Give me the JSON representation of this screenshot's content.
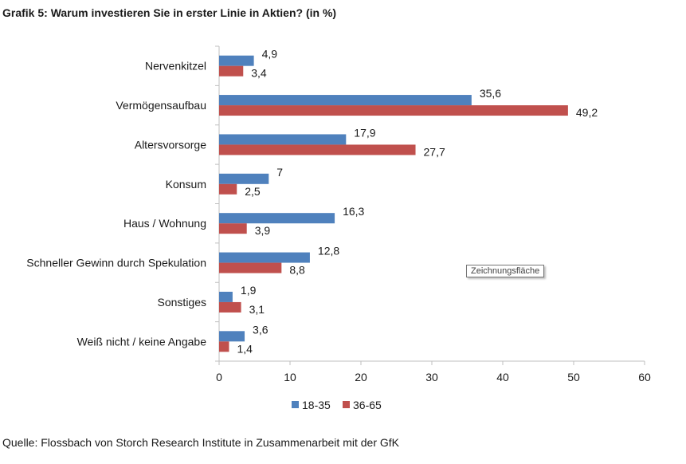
{
  "title": "Grafik 5: Warum investieren Sie in erster Linie in Aktien? (in %)",
  "source": "Quelle: Flossbach von Storch Research Institute in Zusammenarbeit mit der GfK",
  "tooltip": "Zeichnungsfläche",
  "colors": {
    "series1": "#4f81bd",
    "series2": "#c0504d",
    "axis": "#bfbfbf",
    "text": "#1a1a1a"
  },
  "chart_data": {
    "type": "bar",
    "orientation": "horizontal",
    "categories": [
      "Nervenkitzel",
      "Vermögensaufbau",
      "Altersvorsorge",
      "Konsum",
      "Haus / Wohnung",
      "Schneller Gewinn durch Spekulation",
      "Sonstiges",
      "Weiß nicht / keine Angabe"
    ],
    "series": [
      {
        "name": "18-35",
        "values": [
          4.9,
          35.6,
          17.9,
          7,
          16.3,
          12.8,
          1.9,
          3.6
        ],
        "labels": [
          "4,9",
          "35,6",
          "17,9",
          "7",
          "16,3",
          "12,8",
          "1,9",
          "3,6"
        ]
      },
      {
        "name": "36-65",
        "values": [
          3.4,
          49.2,
          27.7,
          2.5,
          3.9,
          8.8,
          3.1,
          1.4
        ],
        "labels": [
          "3,4",
          "49,2",
          "27,7",
          "2,5",
          "3,9",
          "8,8",
          "3,1",
          "1,4"
        ]
      }
    ],
    "xlim": [
      0,
      60
    ],
    "xticks": [
      0,
      10,
      20,
      30,
      40,
      50,
      60
    ],
    "grid": false,
    "legend": "bottom"
  }
}
